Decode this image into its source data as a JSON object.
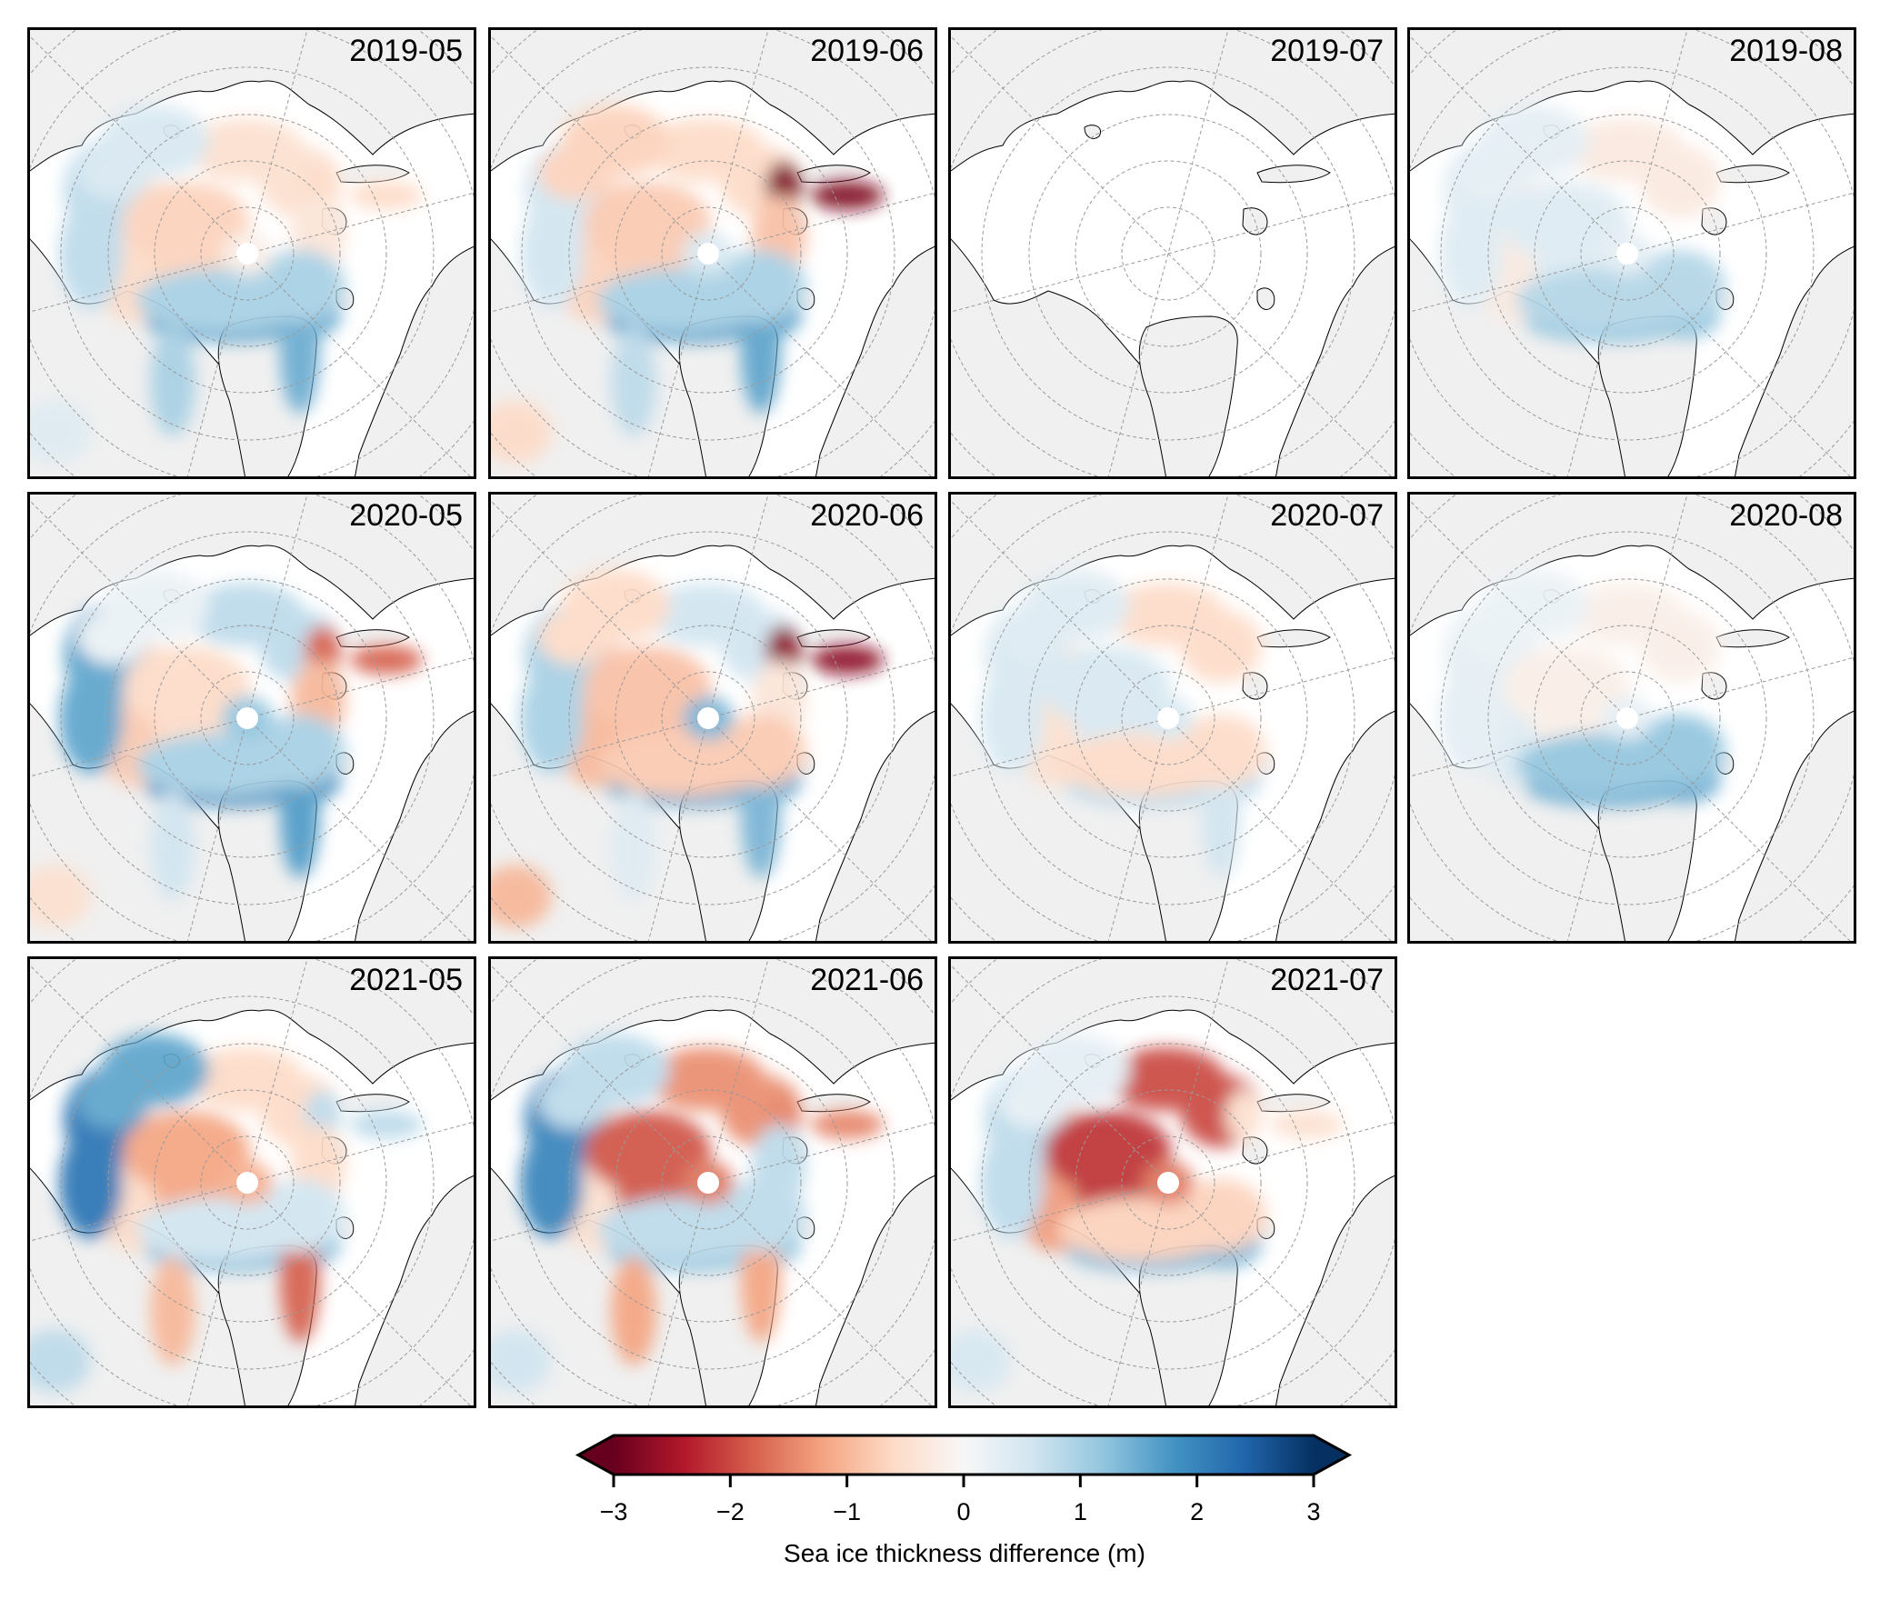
{
  "figure": {
    "panels": [
      {
        "label": "2019-05",
        "regions": {
          "beaufort": -0.6,
          "chukchi": 0.8,
          "central": -0.7,
          "laptev": -0.5,
          "kara": -0.6,
          "barents": -0.4,
          "greenland_north": 1.6,
          "fram": 1.5,
          "canada_basin": 1.0,
          "baffin": 1.0,
          "hudson": 0.4,
          "east_siberian": 0.5,
          "pole": -0.2
        }
      },
      {
        "label": "2019-06",
        "regions": {
          "beaufort": -0.7,
          "chukchi": 0.6,
          "central": -0.8,
          "laptev": -0.6,
          "kara": -2.8,
          "barents": -0.9,
          "greenland_north": 1.7,
          "fram": 1.6,
          "canada_basin": 1.0,
          "baffin": 0.8,
          "hudson": -0.6,
          "east_siberian": -0.7,
          "pole": 0.5
        }
      },
      {
        "label": "2019-07",
        "regions": {}
      },
      {
        "label": "2019-08",
        "regions": {
          "beaufort": -0.3,
          "chukchi": 0.4,
          "central": 0.4,
          "laptev": -0.3,
          "greenland_north": 1.2,
          "canada_basin": 0.9,
          "pole": 0.3,
          "east_siberian": 0.3
        }
      },
      {
        "label": "2020-05",
        "regions": {
          "beaufort": -0.8,
          "chukchi": 1.6,
          "central": -0.6,
          "laptev": 0.8,
          "kara": -1.8,
          "barents": -1.0,
          "greenland_north": 1.9,
          "fram": 1.7,
          "canada_basin": 1.0,
          "baffin": 0.6,
          "hudson": -0.5,
          "east_siberian": 0.2,
          "pole": 1.2
        }
      },
      {
        "label": "2020-06",
        "regions": {
          "beaufort": -1.0,
          "chukchi": 1.0,
          "central": -0.9,
          "laptev": 0.6,
          "kara": -2.7,
          "barents": -0.4,
          "greenland_north": 1.6,
          "fram": 1.4,
          "canada_basin": -0.8,
          "baffin": 0.4,
          "hudson": -1.0,
          "east_siberian": -0.6,
          "pole": 1.4
        }
      },
      {
        "label": "2020-07",
        "regions": {
          "beaufort": -0.5,
          "chukchi": 0.5,
          "central": 0.5,
          "laptev": -0.6,
          "greenland_north": 0.8,
          "fram": 0.6,
          "canada_basin": -0.6,
          "pole": 0.5,
          "east_siberian": 0.4
        }
      },
      {
        "label": "2020-08",
        "regions": {
          "beaufort": 0.4,
          "chukchi": 0.3,
          "central": -0.2,
          "laptev": -0.2,
          "greenland_north": 1.5,
          "canada_basin": 1.2,
          "pole": 0.3,
          "east_siberian": 0.2
        }
      },
      {
        "label": "2021-05",
        "regions": {
          "beaufort": -0.6,
          "chukchi": 2.2,
          "central": -1.2,
          "laptev": -0.6,
          "kara": 0.8,
          "barents": -0.6,
          "greenland_north": 1.3,
          "fram": -1.8,
          "canada_basin": 0.6,
          "baffin": -1.0,
          "hudson": 0.8,
          "east_siberian": 1.6,
          "pole": -1.1
        }
      },
      {
        "label": "2021-06",
        "regions": {
          "beaufort": -0.5,
          "chukchi": 2.0,
          "central": -1.9,
          "laptev": -1.4,
          "kara": -1.5,
          "barents": 0.8,
          "greenland_north": 1.2,
          "fram": -1.2,
          "canada_basin": 0.8,
          "baffin": -1.2,
          "hudson": 0.6,
          "east_siberian": 0.8,
          "pole": -1.6
        }
      },
      {
        "label": "2021-07",
        "regions": {
          "beaufort": -1.3,
          "chukchi": 0.8,
          "central": -2.2,
          "laptev": -2.0,
          "kara": -0.5,
          "greenland_north": 1.4,
          "canada_basin": -0.7,
          "hudson": 0.5,
          "east_siberian": 0.3,
          "pole": -1.6
        }
      }
    ]
  },
  "colorbar": {
    "label": "Sea ice thickness difference (m)",
    "ticks": [
      "−3",
      "−2",
      "−1",
      "0",
      "1",
      "2",
      "3"
    ],
    "range": [
      -3,
      3
    ],
    "extend": "both",
    "colormap": [
      "#67001f",
      "#b2182b",
      "#d6604d",
      "#f4a582",
      "#fddbc7",
      "#f7f7f7",
      "#d1e5f0",
      "#92c5de",
      "#4393c3",
      "#2166ac",
      "#053061"
    ]
  },
  "chart_data": {
    "type": "heatmap",
    "title": "",
    "subplots": [
      "2019-05",
      "2019-06",
      "2019-07",
      "2019-08",
      "2020-05",
      "2020-06",
      "2020-07",
      "2020-08",
      "2021-05",
      "2021-06",
      "2021-07"
    ],
    "colorbar_label": "Sea ice thickness difference (m)",
    "vlim": [
      -3,
      3
    ],
    "colorbar_ticks": [
      -3,
      -2,
      -1,
      0,
      1,
      2,
      3
    ],
    "projection": "north polar stereographic",
    "grid": true,
    "legend": "bottom-center colorbar"
  },
  "colors": {
    "land": "#f0f0f0",
    "ocean": "#ffffff",
    "coast": "#000000",
    "grid": "#9a9a9a"
  }
}
